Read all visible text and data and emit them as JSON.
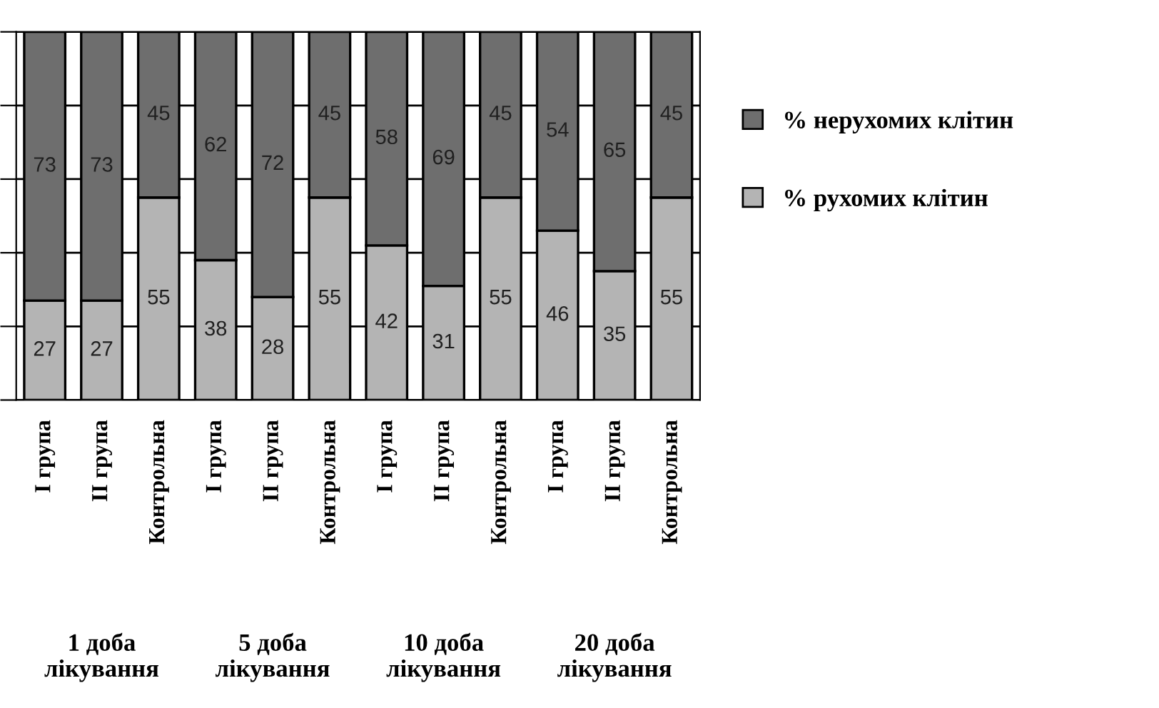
{
  "chart_data": {
    "type": "bar",
    "stacked": true,
    "categories": [
      "I група",
      "II група",
      "Контрольна",
      "I група",
      "II група",
      "Контрольна",
      "I група",
      "II група",
      "Контрольна",
      "I група",
      "II група",
      "Контрольна"
    ],
    "series": [
      {
        "name": "% рухомих клітин",
        "color": "#b4b4b4",
        "values": [
          27,
          27,
          55,
          38,
          28,
          55,
          42,
          31,
          55,
          46,
          35,
          55
        ]
      },
      {
        "name": "% нерухомих клітин",
        "color": "#6e6e6e",
        "values": [
          73,
          73,
          45,
          62,
          72,
          45,
          58,
          69,
          45,
          54,
          65,
          45
        ]
      }
    ],
    "annotations": [
      "1 доба\nлікування",
      "5 доба\nлікування",
      "10 доба\nлікування",
      "20 доба\nлікування"
    ],
    "ylim": [
      0,
      100
    ],
    "yticks": [
      {
        "value": 0,
        "label": null
      },
      {
        "value": 20,
        "label": null
      },
      {
        "value": 40,
        "label": null
      },
      {
        "value": 60,
        "label": null
      },
      {
        "value": 80,
        "label": null
      },
      {
        "value": 100,
        "label": null
      }
    ],
    "tick_labels": "x",
    "grid": "y",
    "legend": "right",
    "data_labels": true
  }
}
